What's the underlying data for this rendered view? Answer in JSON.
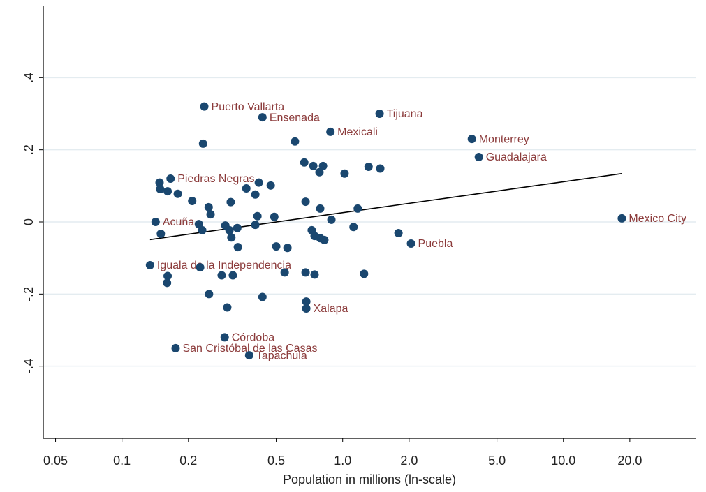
{
  "chart_data": {
    "type": "scatter",
    "xlabel": "Population in millions (ln-scale)",
    "x_log": true,
    "xlim": [
      0.044,
      40
    ],
    "ylim": [
      -0.6,
      0.6
    ],
    "xticks": [
      0.05,
      0.1,
      0.2,
      0.5,
      {
        "value": 1,
        "label": "1.0"
      },
      {
        "value": 2,
        "label": "2.0"
      },
      {
        "value": 5,
        "label": "5.0"
      },
      {
        "value": 10,
        "label": "10.0"
      },
      {
        "value": 20,
        "label": "20.0"
      }
    ],
    "yticks": [
      {
        "value": 0.4,
        "label": ".4"
      },
      {
        "value": 0.2,
        "label": ".2"
      },
      0,
      {
        "value": -0.2,
        "label": "-.2"
      },
      {
        "value": -0.4,
        "label": "-.4"
      }
    ],
    "grid": true,
    "color": "#1a476f",
    "label_color": "#8b3a3a",
    "x": [
      0.236,
      0.433,
      1.47,
      0.88,
      3.85,
      4.14,
      0.166,
      18.4,
      0.142,
      2.04,
      0.134,
      0.684,
      0.292,
      0.175,
      0.377,
      0.233,
      0.608,
      0.67,
      0.736,
      0.815,
      0.785,
      1.02,
      1.31,
      1.48,
      0.148,
      0.149,
      0.161,
      0.179,
      0.208,
      0.366,
      0.402,
      0.472,
      0.417,
      0.247,
      0.252,
      0.311,
      0.411,
      0.49,
      0.679,
      0.791,
      0.889,
      1.17,
      0.223,
      0.231,
      0.294,
      0.307,
      0.313,
      0.333,
      0.335,
      0.402,
      0.5,
      0.562,
      0.724,
      0.746,
      0.791,
      0.826,
      1.12,
      1.79,
      0.15,
      0.161,
      0.16,
      0.226,
      0.283,
      0.318,
      0.546,
      0.679,
      0.746,
      1.25,
      0.248,
      0.433,
      0.684,
      0.3
    ],
    "values": [
      0.32,
      0.29,
      0.3,
      0.25,
      0.23,
      0.18,
      0.12,
      0.01,
      0,
      -0.06,
      -0.12,
      -0.24,
      -0.32,
      -0.35,
      -0.37,
      0.217,
      0.223,
      0.165,
      0.155,
      0.155,
      0.138,
      0.134,
      0.153,
      0.148,
      0.109,
      0.091,
      0.085,
      0.078,
      0.058,
      0.093,
      0.076,
      0.101,
      0.109,
      0.041,
      0.021,
      0.055,
      0.016,
      0.014,
      0.056,
      0.037,
      0.006,
      0.037,
      -0.006,
      -0.023,
      -0.01,
      -0.023,
      -0.043,
      -0.017,
      -0.07,
      -0.008,
      -0.068,
      -0.072,
      -0.023,
      -0.039,
      -0.045,
      -0.05,
      -0.014,
      -0.031,
      -0.033,
      -0.15,
      -0.169,
      -0.126,
      -0.148,
      -0.148,
      -0.14,
      -0.14,
      -0.146,
      -0.144,
      -0.2,
      -0.208,
      -0.221,
      -0.237
    ],
    "labels": [
      "Puerto Vallarta",
      "Ensenada",
      "Tijuana",
      "Mexicali",
      "Monterrey",
      "Guadalajara",
      "Piedras Negras",
      "Mexico City",
      "Acuña",
      "Puebla",
      "Iguala de la Independencia",
      "Xalapa",
      "Córdoba",
      "San Cristóbal de las Casas",
      "Tapachula",
      null,
      null,
      null,
      null,
      null,
      null,
      null,
      null,
      null,
      null,
      null,
      null,
      null,
      null,
      null,
      null,
      null,
      null,
      null,
      null,
      null,
      null,
      null,
      null,
      null,
      null,
      null,
      null,
      null,
      null,
      null,
      null,
      null,
      null,
      null,
      null,
      null,
      null,
      null,
      null,
      null,
      null,
      null,
      null,
      null,
      null,
      null,
      null,
      null,
      null,
      null,
      null,
      null,
      null,
      null,
      null
    ],
    "fit_line": {
      "color": "#000000",
      "x": [
        0.134,
        18.4
      ],
      "y": [
        -0.049,
        0.134
      ]
    }
  }
}
